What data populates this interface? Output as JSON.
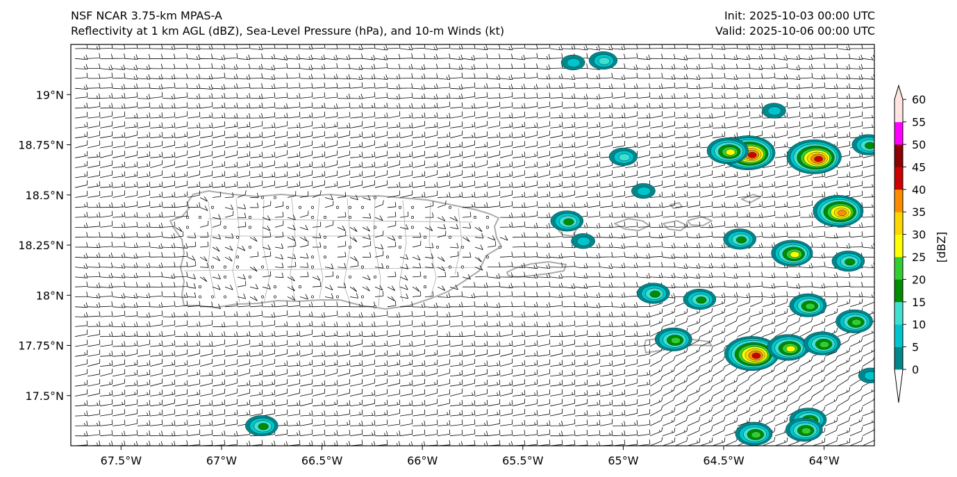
{
  "header": {
    "model": "NSF NCAR 3.75-km MPAS-A",
    "fields": "Reflectivity at 1 km AGL (dBZ), Sea-Level Pressure (hPa), and 10-m Winds (kt)",
    "init": "Init: 2025-10-03 00:00 UTC",
    "valid": "Valid: 2025-10-06 00:00 UTC"
  },
  "map": {
    "lon_range": [
      -67.75,
      -63.75
    ],
    "lat_range": [
      17.25,
      19.25
    ],
    "lat_ticks": [
      {
        "value": 19.0,
        "label": "19°N"
      },
      {
        "value": 18.75,
        "label": "18.75°N"
      },
      {
        "value": 18.5,
        "label": "18.5°N"
      },
      {
        "value": 18.25,
        "label": "18.25°N"
      },
      {
        "value": 18.0,
        "label": "18°N"
      },
      {
        "value": 17.75,
        "label": "17.75°N"
      },
      {
        "value": 17.5,
        "label": "17.5°N"
      }
    ],
    "lon_ticks": [
      {
        "value": -67.5,
        "label": "67.5°W"
      },
      {
        "value": -67.0,
        "label": "67°W"
      },
      {
        "value": -66.5,
        "label": "66.5°W"
      },
      {
        "value": -66.0,
        "label": "66°W"
      },
      {
        "value": -65.5,
        "label": "65.5°W"
      },
      {
        "value": -65.0,
        "label": "65°W"
      },
      {
        "value": -64.5,
        "label": "64.5°W"
      },
      {
        "value": -64.0,
        "label": "64°W"
      }
    ],
    "land_color": "#aaaaaa",
    "echo_cells": [
      {
        "lon": -64.38,
        "lat": 18.71,
        "peak": 45
      },
      {
        "lon": -64.48,
        "lat": 18.72,
        "peak": 30
      },
      {
        "lon": -64.05,
        "lat": 18.69,
        "peak": 45
      },
      {
        "lon": -64.36,
        "lat": 17.71,
        "peak": 45
      },
      {
        "lon": -64.18,
        "lat": 17.74,
        "peak": 30
      },
      {
        "lon": -63.93,
        "lat": 18.42,
        "peak": 40
      },
      {
        "lon": -64.16,
        "lat": 18.21,
        "peak": 30
      },
      {
        "lon": -64.08,
        "lat": 17.95,
        "peak": 25
      },
      {
        "lon": -63.85,
        "lat": 17.87,
        "peak": 25
      },
      {
        "lon": -64.08,
        "lat": 17.38,
        "peak": 25
      },
      {
        "lon": -64.1,
        "lat": 17.33,
        "peak": 25
      },
      {
        "lon": -64.35,
        "lat": 17.31,
        "peak": 25
      },
      {
        "lon": -64.75,
        "lat": 17.78,
        "peak": 25
      },
      {
        "lon": -64.85,
        "lat": 18.01,
        "peak": 20
      },
      {
        "lon": -64.62,
        "lat": 17.98,
        "peak": 20
      },
      {
        "lon": -65.28,
        "lat": 18.37,
        "peak": 20
      },
      {
        "lon": -65.0,
        "lat": 18.69,
        "peak": 15
      },
      {
        "lon": -66.8,
        "lat": 17.35,
        "peak": 20
      },
      {
        "lon": -64.9,
        "lat": 18.52,
        "peak": 10
      },
      {
        "lon": -65.2,
        "lat": 18.27,
        "peak": 10
      },
      {
        "lon": -65.1,
        "lat": 19.17,
        "peak": 15
      },
      {
        "lon": -65.25,
        "lat": 19.16,
        "peak": 10
      },
      {
        "lon": -63.78,
        "lat": 18.75,
        "peak": 20
      },
      {
        "lon": -63.88,
        "lat": 18.17,
        "peak": 20
      },
      {
        "lon": -64.42,
        "lat": 18.28,
        "peak": 20
      },
      {
        "lon": -63.77,
        "lat": 17.6,
        "peak": 10
      },
      {
        "lon": -64.01,
        "lat": 17.76,
        "peak": 25
      },
      {
        "lon": -64.25,
        "lat": 18.92,
        "peak": 10
      }
    ]
  },
  "colorbar": {
    "label": "[dBZ]",
    "levels": [
      0,
      5,
      10,
      15,
      20,
      25,
      30,
      35,
      40,
      45,
      50,
      55,
      60
    ],
    "tick_labels": [
      "0",
      "5",
      "10",
      "15",
      "20",
      "25",
      "30",
      "35",
      "40",
      "45",
      "50",
      "55",
      "60"
    ],
    "colors": [
      "#00868b",
      "#00c5cd",
      "#40e0d0",
      "#008b00",
      "#32cd32",
      "#ffff00",
      "#ffd700",
      "#ff8c00",
      "#cd0000",
      "#8b0000",
      "#ff00ff",
      "#ffe4e1"
    ]
  }
}
